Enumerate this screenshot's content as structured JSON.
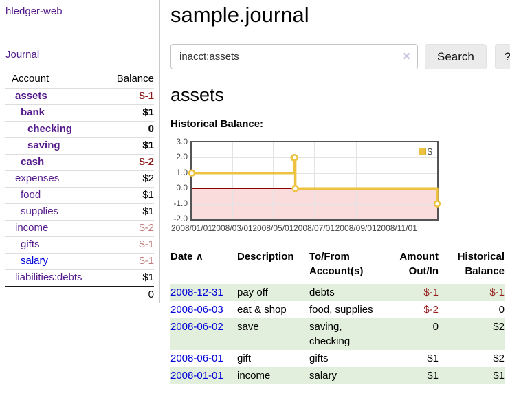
{
  "sidebar": {
    "brand": "hledger-web",
    "journal_link": "Journal",
    "accounts": {
      "header": {
        "account": "Account",
        "balance": "Balance"
      },
      "rows": [
        {
          "name": "assets",
          "balance": "$-1",
          "depth": 1,
          "strong": true,
          "neg": "strong",
          "link_blue": false
        },
        {
          "name": "bank",
          "balance": "$1",
          "depth": 2,
          "strong": true,
          "neg": "none",
          "link_blue": false
        },
        {
          "name": "checking",
          "balance": "0",
          "depth": 3,
          "strong": true,
          "neg": "none",
          "link_blue": false
        },
        {
          "name": "saving",
          "balance": "$1",
          "depth": 3,
          "strong": true,
          "neg": "none",
          "link_blue": false
        },
        {
          "name": "cash",
          "balance": "$-2",
          "depth": 2,
          "strong": true,
          "neg": "strong",
          "link_blue": false
        },
        {
          "name": "expenses",
          "balance": "$2",
          "depth": 1,
          "strong": false,
          "neg": "none",
          "link_blue": false
        },
        {
          "name": "food",
          "balance": "$1",
          "depth": 2,
          "strong": false,
          "neg": "none",
          "link_blue": false
        },
        {
          "name": "supplies",
          "balance": "$1",
          "depth": 2,
          "strong": false,
          "neg": "none",
          "link_blue": false
        },
        {
          "name": "income",
          "balance": "$-2",
          "depth": 1,
          "strong": false,
          "neg": "soft",
          "link_blue": false
        },
        {
          "name": "gifts",
          "balance": "$-1",
          "depth": 2,
          "strong": false,
          "neg": "soft",
          "link_blue": false
        },
        {
          "name": "salary",
          "balance": "$-1",
          "depth": 2,
          "strong": false,
          "neg": "soft",
          "link_blue": true
        },
        {
          "name": "liabilities:debts",
          "balance": "$1",
          "depth": 1,
          "strong": false,
          "neg": "none",
          "link_blue": false
        }
      ],
      "total": "0"
    }
  },
  "main": {
    "title": "sample.journal",
    "search": {
      "value": "inacct:assets",
      "clear_icon": "✕",
      "search_button": "Search",
      "help_button": "?"
    },
    "section_heading": "assets",
    "chart_label": "Historical Balance:"
  },
  "chart_data": {
    "type": "line",
    "step": true,
    "title": "Historical Balance",
    "xlim": [
      "2008-01-01",
      "2008-12-31"
    ],
    "ylim": [
      -2,
      3
    ],
    "y_ticks": [
      "3.0",
      "2.0",
      "1.0",
      "0.0",
      "-1.0",
      "-2.0"
    ],
    "x_ticks": [
      "2008/01/01",
      "2008/03/01",
      "2008/05/01",
      "2008/07/01",
      "2008/09/01",
      "2008/11/01"
    ],
    "grid": true,
    "series": [
      {
        "name": "$",
        "color": "#edc240",
        "points": [
          [
            "2008-01-01",
            1
          ],
          [
            "2008-06-01",
            2
          ],
          [
            "2008-06-02",
            2
          ],
          [
            "2008-06-03",
            0
          ],
          [
            "2008-12-31",
            -1
          ]
        ]
      }
    ],
    "legend": {
      "position": "top-right",
      "items": [
        {
          "label": "$",
          "color": "#edc240"
        }
      ]
    },
    "markings": {
      "negative_region_fill": "#fbdcdc",
      "zero_line_color": "#8b0000"
    }
  },
  "register": {
    "headers": [
      "Date",
      "Description",
      "To/From Account(s)",
      "Amount Out/In",
      "Historical Balance"
    ],
    "sort_icon": "∧",
    "rows": [
      {
        "date": "2008-12-31",
        "description": "pay off",
        "accounts": "debts",
        "amount": "$-1",
        "balance": "$-1",
        "amount_neg": true,
        "balance_neg": true,
        "shaded": true
      },
      {
        "date": "2008-06-03",
        "description": "eat & shop",
        "accounts": "food, supplies",
        "amount": "$-2",
        "balance": "0",
        "amount_neg": true,
        "balance_neg": false,
        "shaded": false
      },
      {
        "date": "2008-06-02",
        "description": "save",
        "accounts": "saving, checking",
        "amount": "0",
        "balance": "$2",
        "amount_neg": false,
        "balance_neg": false,
        "shaded": true
      },
      {
        "date": "2008-06-01",
        "description": "gift",
        "accounts": "gifts",
        "amount": "$1",
        "balance": "$2",
        "amount_neg": false,
        "balance_neg": false,
        "shaded": false
      },
      {
        "date": "2008-01-01",
        "description": "income",
        "accounts": "salary",
        "amount": "$1",
        "balance": "$1",
        "amount_neg": false,
        "balance_neg": false,
        "shaded": true
      }
    ]
  }
}
